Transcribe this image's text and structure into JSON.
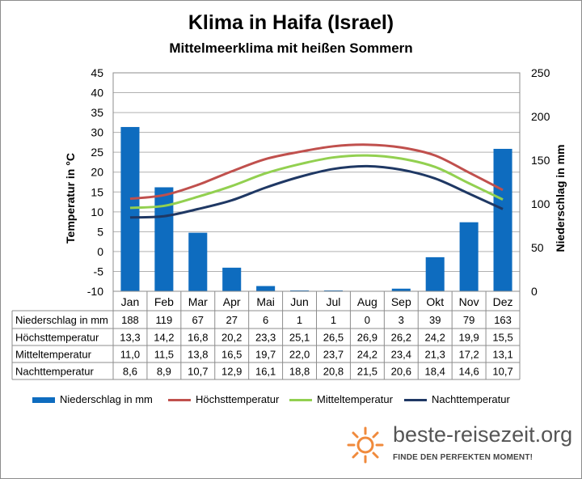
{
  "title": "Klima in Haifa (Israel)",
  "subtitle": "Mittelmeerklima mit heißen Sommern",
  "chart_data": {
    "type": "bar",
    "categories": [
      "Jan",
      "Feb",
      "Mar",
      "Apr",
      "Mai",
      "Jun",
      "Jul",
      "Aug",
      "Sep",
      "Okt",
      "Nov",
      "Dez"
    ],
    "left_axis": {
      "label": "Temperatur in °C",
      "ylim": [
        -10,
        45
      ],
      "ticks": [
        -10,
        -5,
        0,
        5,
        10,
        15,
        20,
        25,
        30,
        35,
        40,
        45
      ]
    },
    "right_axis": {
      "label": "Niederschlag in mm",
      "ylim": [
        0,
        250
      ],
      "ticks": [
        0,
        50,
        100,
        150,
        200,
        250
      ]
    },
    "grid": true,
    "legend_position": "bottom",
    "series": [
      {
        "name": "Niederschlag in mm",
        "kind": "bar",
        "axis": "right",
        "color": "#0e6cbf",
        "values": [
          188,
          119,
          67,
          27,
          6,
          1,
          1,
          0,
          3,
          39,
          79,
          163
        ],
        "display": [
          "188",
          "119",
          "67",
          "27",
          "6",
          "1",
          "1",
          "0",
          "3",
          "39",
          "79",
          "163"
        ]
      },
      {
        "name": "Höchsttemperatur",
        "kind": "line",
        "axis": "left",
        "color": "#c0504d",
        "values": [
          13.3,
          14.2,
          16.8,
          20.2,
          23.3,
          25.1,
          26.5,
          26.9,
          26.2,
          24.2,
          19.9,
          15.5
        ],
        "display": [
          "13,3",
          "14,2",
          "16,8",
          "20,2",
          "23,3",
          "25,1",
          "26,5",
          "26,9",
          "26,2",
          "24,2",
          "19,9",
          "15,5"
        ]
      },
      {
        "name": "Mitteltemperatur",
        "kind": "line",
        "axis": "left",
        "color": "#92d050",
        "values": [
          11.0,
          11.5,
          13.8,
          16.5,
          19.7,
          22.0,
          23.7,
          24.2,
          23.4,
          21.3,
          17.2,
          13.1
        ],
        "display": [
          "11,0",
          "11,5",
          "13,8",
          "16,5",
          "19,7",
          "22,0",
          "23,7",
          "24,2",
          "23,4",
          "21,3",
          "17,2",
          "13,1"
        ]
      },
      {
        "name": "Nachttemperatur",
        "kind": "line",
        "axis": "left",
        "color": "#1f3864",
        "values": [
          8.6,
          8.9,
          10.7,
          12.9,
          16.1,
          18.8,
          20.8,
          21.5,
          20.6,
          18.4,
          14.6,
          10.7
        ],
        "display": [
          "8,6",
          "8,9",
          "10,7",
          "12,9",
          "16,1",
          "18,8",
          "20,8",
          "21,5",
          "20,6",
          "18,4",
          "14,6",
          "10,7"
        ]
      }
    ]
  },
  "logo": {
    "text": "beste-reisezeit.org",
    "tagline": "FINDE DEN PERFEKTEN MOMENT!",
    "icon": "sun-icon",
    "color": "#f08a3c"
  }
}
